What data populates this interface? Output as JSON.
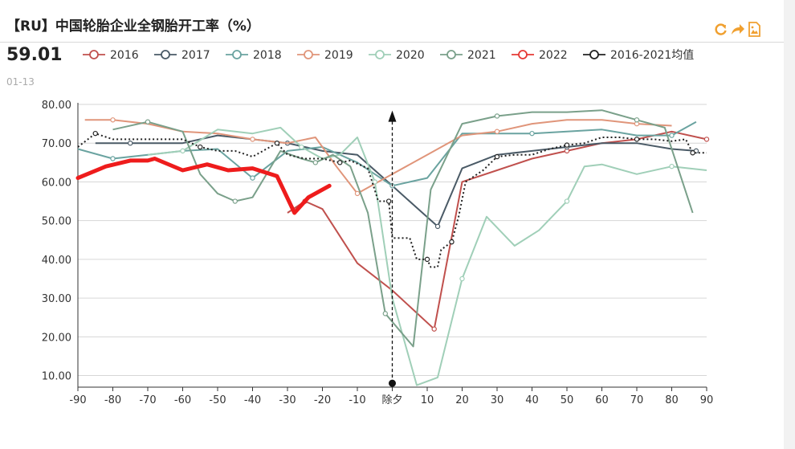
{
  "header": {
    "title": "【RU】中国轮胎企业全钢胎开工率（%）",
    "value": "59.01",
    "date": "01-13"
  },
  "toolbar": {
    "icons": [
      "refresh-icon",
      "share-icon",
      "save-image-icon"
    ],
    "color": "#f0a030"
  },
  "chart_data": {
    "type": "line",
    "xlim": [
      -90,
      90
    ],
    "ylim": [
      7,
      80
    ],
    "x_ticks": [
      -90,
      -80,
      -70,
      -60,
      -50,
      -40,
      -30,
      -20,
      -10,
      0,
      10,
      20,
      30,
      40,
      50,
      60,
      70,
      80,
      90
    ],
    "x_tick_labels": [
      "-90",
      "-80",
      "-70",
      "-60",
      "-50",
      "-40",
      "-30",
      "-20",
      "-10",
      "除夕",
      "10",
      "20",
      "30",
      "40",
      "50",
      "60",
      "70",
      "80",
      "90"
    ],
    "y_ticks": [
      10,
      20,
      30,
      40,
      50,
      60,
      70,
      80
    ],
    "y_tick_labels": [
      "10.00",
      "20.00",
      "30.00",
      "40.00",
      "50.00",
      "60.00",
      "70.00",
      "80.00"
    ],
    "grid": "horizontal",
    "legend_position": "top",
    "marker_line": {
      "x": 0,
      "y_bottom": 8.0,
      "y_top": 78.0
    },
    "series": [
      {
        "name": "2016",
        "color": "#c0504d",
        "width": 2,
        "points": [
          [
            -30,
            52
          ],
          [
            -25,
            55
          ],
          [
            -20,
            53
          ],
          [
            -10,
            39
          ],
          [
            0,
            32
          ],
          [
            12,
            22
          ],
          [
            20,
            60
          ],
          [
            30,
            63
          ],
          [
            40,
            66
          ],
          [
            50,
            68
          ],
          [
            60,
            70
          ],
          [
            70,
            71
          ],
          [
            80,
            73
          ],
          [
            90,
            71
          ]
        ]
      },
      {
        "name": "2017",
        "color": "#4a5a66",
        "width": 2,
        "points": [
          [
            -85,
            70
          ],
          [
            -75,
            70
          ],
          [
            -60,
            70
          ],
          [
            -50,
            72
          ],
          [
            -40,
            71
          ],
          [
            -30,
            70
          ],
          [
            -20,
            68
          ],
          [
            -10,
            67
          ],
          [
            0,
            59
          ],
          [
            13,
            48.5
          ],
          [
            20,
            63.5
          ],
          [
            30,
            67
          ],
          [
            40,
            68
          ],
          [
            50,
            69
          ],
          [
            60,
            70
          ],
          [
            70,
            70
          ],
          [
            80,
            68.5
          ],
          [
            87,
            68
          ]
        ]
      },
      {
        "name": "2018",
        "color": "#6aa3a0",
        "width": 2,
        "points": [
          [
            -90,
            68.5
          ],
          [
            -80,
            66
          ],
          [
            -70,
            67
          ],
          [
            -60,
            68
          ],
          [
            -50,
            68.5
          ],
          [
            -40,
            61
          ],
          [
            -30,
            68
          ],
          [
            -20,
            69
          ],
          [
            -10,
            65
          ],
          [
            0,
            59
          ],
          [
            10,
            61
          ],
          [
            20,
            72.5
          ],
          [
            30,
            72.5
          ],
          [
            40,
            72.5
          ],
          [
            50,
            73
          ],
          [
            60,
            73.5
          ],
          [
            70,
            72
          ],
          [
            80,
            72
          ],
          [
            87,
            75.5
          ]
        ]
      },
      {
        "name": "2019",
        "color": "#e0957a",
        "width": 2,
        "points": [
          [
            -88,
            76
          ],
          [
            -80,
            76
          ],
          [
            -70,
            75
          ],
          [
            -60,
            73
          ],
          [
            -50,
            72.5
          ],
          [
            -40,
            71
          ],
          [
            -30,
            70
          ],
          [
            -22,
            71.5
          ],
          [
            -16,
            64
          ],
          [
            -10,
            57
          ],
          [
            0,
            62
          ],
          [
            10,
            67
          ],
          [
            20,
            72
          ],
          [
            30,
            73
          ],
          [
            40,
            75
          ],
          [
            50,
            76
          ],
          [
            60,
            76
          ],
          [
            70,
            75
          ],
          [
            80,
            74.5
          ]
        ]
      },
      {
        "name": "2020",
        "color": "#a0cfb8",
        "width": 2,
        "points": [
          [
            -70,
            67
          ],
          [
            -60,
            68
          ],
          [
            -50,
            73.5
          ],
          [
            -40,
            72.5
          ],
          [
            -32,
            74
          ],
          [
            -26,
            69
          ],
          [
            -20,
            66
          ],
          [
            -15,
            67
          ],
          [
            -10,
            71.5
          ],
          [
            -5,
            60
          ],
          [
            0,
            30
          ],
          [
            7,
            7.5
          ],
          [
            13,
            9.5
          ],
          [
            20,
            35
          ],
          [
            27,
            51
          ],
          [
            35,
            43.5
          ],
          [
            42,
            47.5
          ],
          [
            50,
            55
          ],
          [
            55,
            64
          ],
          [
            60,
            64.5
          ],
          [
            70,
            62
          ],
          [
            80,
            64
          ],
          [
            90,
            63
          ]
        ]
      },
      {
        "name": "2021",
        "color": "#7aa08a",
        "width": 2,
        "points": [
          [
            -80,
            73.5
          ],
          [
            -70,
            75.5
          ],
          [
            -60,
            73
          ],
          [
            -55,
            62
          ],
          [
            -50,
            57
          ],
          [
            -45,
            55
          ],
          [
            -40,
            56
          ],
          [
            -32,
            68
          ],
          [
            -26,
            66
          ],
          [
            -22,
            65
          ],
          [
            -17,
            67
          ],
          [
            -12,
            64
          ],
          [
            -7,
            52
          ],
          [
            -2,
            26
          ],
          [
            6,
            17.5
          ],
          [
            11,
            58
          ],
          [
            20,
            75
          ],
          [
            30,
            77
          ],
          [
            40,
            78
          ],
          [
            50,
            78
          ],
          [
            60,
            78.5
          ],
          [
            70,
            76
          ],
          [
            78,
            74
          ],
          [
            86,
            52
          ]
        ]
      },
      {
        "name": "2022",
        "color": "#e53935",
        "width": 2,
        "points": []
      },
      {
        "name": "2016-2021均值",
        "color": "#222222",
        "width": 2,
        "dash": "2,3",
        "points": [
          [
            -90,
            69
          ],
          [
            -85,
            72.5
          ],
          [
            -80,
            71
          ],
          [
            -70,
            71
          ],
          [
            -60,
            71
          ],
          [
            -55,
            69
          ],
          [
            -50,
            68
          ],
          [
            -45,
            68
          ],
          [
            -40,
            66.5
          ],
          [
            -33,
            70
          ],
          [
            -30,
            67
          ],
          [
            -25,
            66
          ],
          [
            -20,
            66
          ],
          [
            -15,
            65
          ],
          [
            -12,
            65.5
          ],
          [
            -7,
            63.5
          ],
          [
            -4,
            55
          ],
          [
            -1,
            55
          ],
          [
            0,
            45.5
          ],
          [
            5,
            45.5
          ],
          [
            7,
            40
          ],
          [
            10,
            40
          ],
          [
            11,
            38
          ],
          [
            13,
            38
          ],
          [
            14,
            42.5
          ],
          [
            17,
            44.5
          ],
          [
            19,
            51
          ],
          [
            21,
            60
          ],
          [
            26,
            63
          ],
          [
            30,
            66.5
          ],
          [
            35,
            67
          ],
          [
            40,
            67
          ],
          [
            45,
            68.5
          ],
          [
            50,
            69.5
          ],
          [
            55,
            70
          ],
          [
            60,
            71.5
          ],
          [
            65,
            71.5
          ],
          [
            70,
            71
          ],
          [
            75,
            71
          ],
          [
            80,
            70.5
          ],
          [
            84,
            71
          ],
          [
            86,
            67.5
          ],
          [
            90,
            67.5
          ]
        ]
      }
    ],
    "highlight_series": {
      "name": "2022",
      "color": "#ee1c1c",
      "width": 5,
      "points": [
        [
          -90,
          61
        ],
        [
          -82,
          64
        ],
        [
          -75,
          65.5
        ],
        [
          -70,
          65.5
        ],
        [
          -68,
          66
        ],
        [
          -60,
          63
        ],
        [
          -53,
          64.5
        ],
        [
          -47,
          63
        ],
        [
          -40,
          63.5
        ],
        [
          -33,
          61.5
        ],
        [
          -28,
          52
        ],
        [
          -24,
          56
        ],
        [
          -18,
          59
        ]
      ]
    }
  }
}
